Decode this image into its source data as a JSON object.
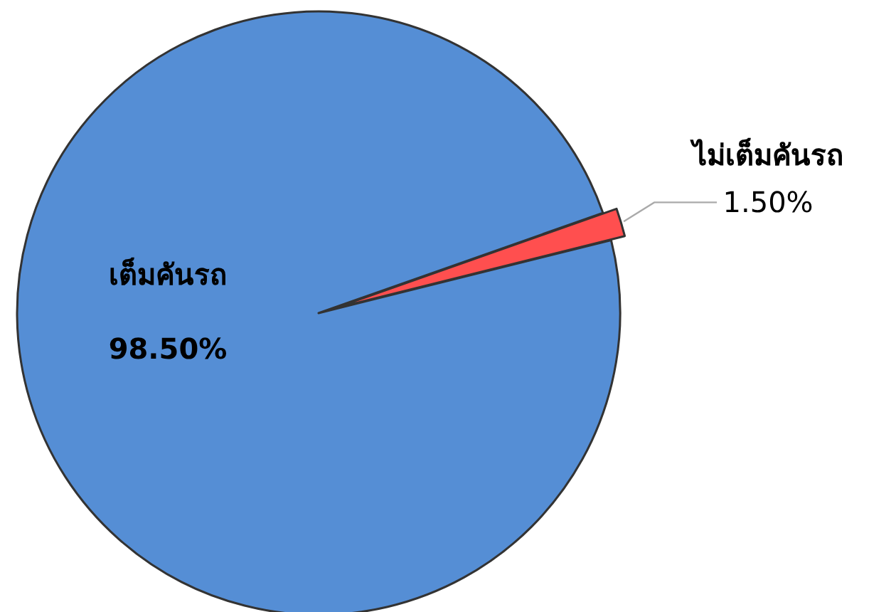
{
  "chart_data": {
    "type": "pie",
    "categories": [
      "เต็มคันรถ",
      "ไม่เต็มคันรถ"
    ],
    "values": [
      98.5,
      1.5
    ],
    "colors": [
      "#558ed5",
      "#ff4f4f"
    ],
    "value_labels": [
      "98.50%",
      "1.50%"
    ],
    "legend": false
  }
}
